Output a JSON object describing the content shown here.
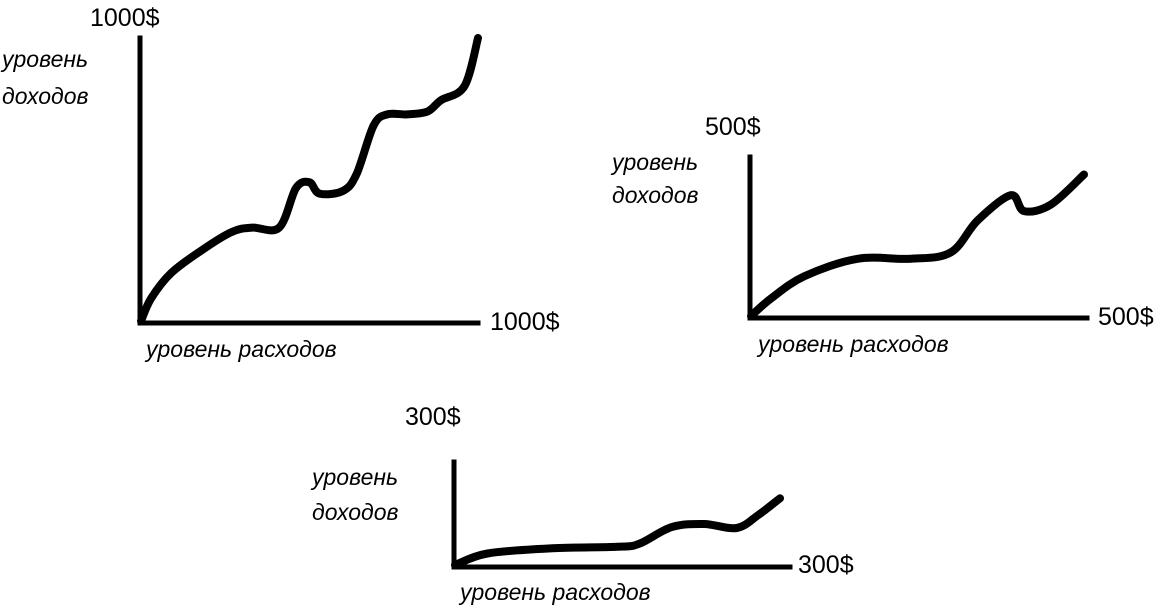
{
  "chart_data": [
    {
      "type": "line",
      "title": "",
      "xlabel": "уровень расходов",
      "ylabel": [
        "уровень",
        "доходов"
      ],
      "xmax_label": "1000$",
      "ymax_label": "1000$",
      "xlim": [
        0,
        1000
      ],
      "ylim": [
        0,
        1000
      ],
      "grid": false,
      "series": [
        {
          "x": [
            0,
            30,
            90,
            180,
            270,
            330,
            410,
            460,
            500,
            530,
            600,
            640,
            690,
            730,
            790,
            850,
            890,
            960,
            1000
          ],
          "y": [
            0,
            80,
            170,
            250,
            315,
            330,
            330,
            470,
            490,
            450,
            460,
            520,
            690,
            730,
            730,
            740,
            780,
            830,
            1000
          ]
        }
      ]
    },
    {
      "type": "line",
      "title": "",
      "xlabel": "уровень расходов",
      "ylabel": [
        "уровень",
        "доходов"
      ],
      "xmax_label": "500$",
      "ymax_label": "500$",
      "xlim": [
        0,
        500
      ],
      "ylim": [
        0,
        500
      ],
      "grid": false,
      "series": [
        {
          "x": [
            0,
            30,
            80,
            160,
            240,
            300,
            340,
            390,
            410,
            450,
            500
          ],
          "y": [
            0,
            55,
            125,
            180,
            180,
            200,
            300,
            380,
            330,
            350,
            445
          ]
        }
      ]
    },
    {
      "type": "line",
      "title": "",
      "xlabel": "уровень расходов",
      "ylabel": [
        "уровень",
        "доходов"
      ],
      "xmax_label": "300$",
      "ymax_label": "300$",
      "xlim": [
        0,
        300
      ],
      "ylim": [
        0,
        300
      ],
      "grid": false,
      "series": [
        {
          "x": [
            0,
            30,
            90,
            150,
            170,
            200,
            230,
            260,
            280,
            300
          ],
          "y": [
            0,
            38,
            55,
            60,
            70,
            125,
            135,
            122,
            165,
            220
          ]
        }
      ]
    }
  ]
}
